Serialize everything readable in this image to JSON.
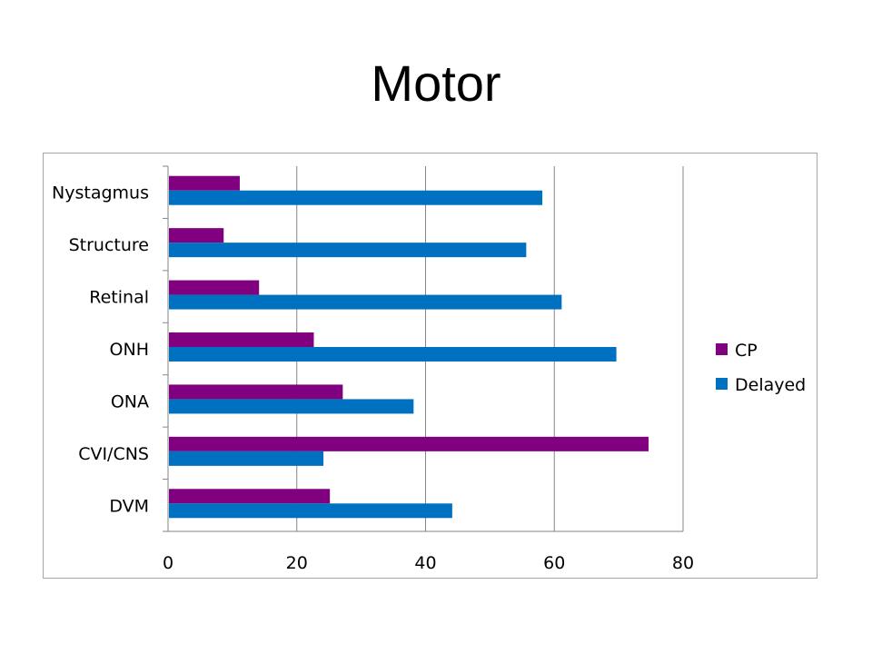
{
  "slide": {
    "title": "Motor"
  },
  "chart_data": {
    "type": "bar",
    "orientation": "horizontal",
    "title": "",
    "xlabel": "",
    "ylabel": "",
    "categories": [
      "Nystagmus",
      "Structure",
      "Retinal",
      "ONH",
      "ONA",
      "CVI/CNS",
      "DVM"
    ],
    "series": [
      {
        "name": "CP",
        "color": "#800080",
        "values": [
          11,
          8.5,
          14,
          22.5,
          27,
          74.5,
          25
        ]
      },
      {
        "name": "Delayed",
        "color": "#0070C0",
        "values": [
          58,
          55.5,
          61,
          69.5,
          38,
          24,
          44
        ]
      }
    ],
    "xlim": [
      0,
      80
    ],
    "xticks": [
      0,
      20,
      40,
      60,
      80
    ],
    "grid": "vertical",
    "legend": "right"
  }
}
